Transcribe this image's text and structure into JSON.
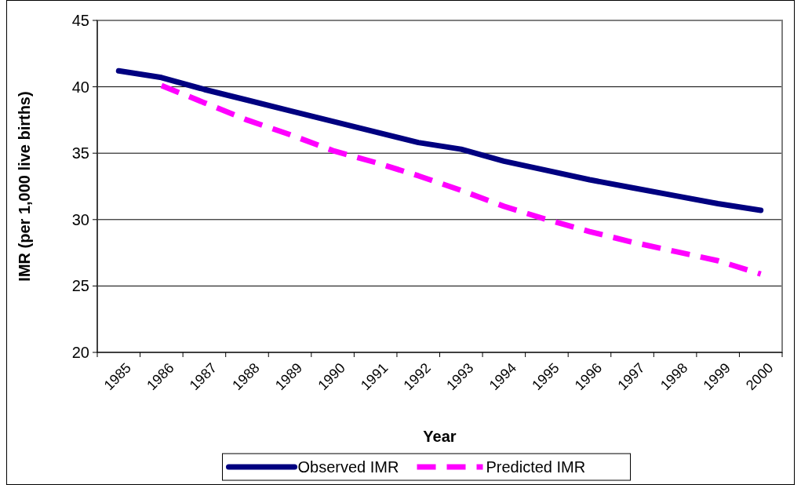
{
  "chart_data": {
    "type": "line",
    "xlabel": "Year",
    "ylabel": "IMR (per 1,000 live births)",
    "categories": [
      "1985",
      "1986",
      "1987",
      "1988",
      "1989",
      "1990",
      "1991",
      "1992",
      "1993",
      "1994",
      "1995",
      "1996",
      "1997",
      "1998",
      "1999",
      "2000"
    ],
    "series": [
      {
        "name": "Observed IMR",
        "color": "#000080",
        "line_style": "solid",
        "values": [
          41.2,
          40.7,
          39.8,
          39.0,
          38.2,
          37.4,
          36.6,
          35.8,
          35.3,
          34.4,
          33.7,
          33.0,
          32.4,
          31.8,
          31.2,
          30.7
        ]
      },
      {
        "name": "Predicted IMR",
        "color": "#ff00ff",
        "line_style": "dashed",
        "values": [
          null,
          40.1,
          38.8,
          37.5,
          36.4,
          35.2,
          34.3,
          33.3,
          32.2,
          31.0,
          30.0,
          29.1,
          28.3,
          27.6,
          26.9,
          25.9
        ]
      }
    ],
    "ylim": [
      20,
      45
    ],
    "yticks": [
      20,
      25,
      30,
      35,
      40,
      45
    ],
    "grid": "y",
    "legend": "bottom",
    "marker": "none"
  }
}
